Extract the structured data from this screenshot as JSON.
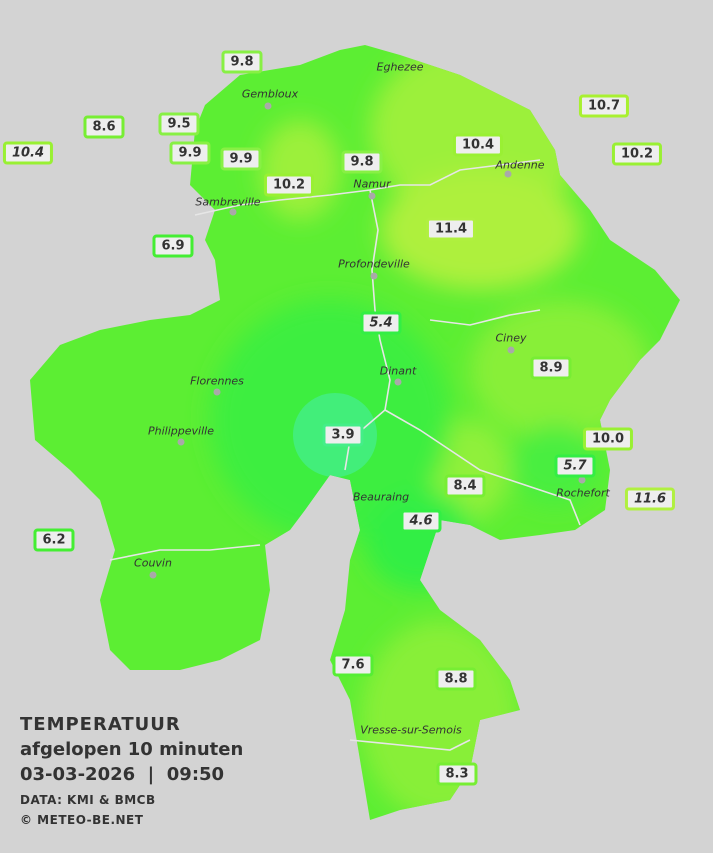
{
  "legend": {
    "title": "TEMPERATUUR",
    "subtitle": "afgelopen 10 minuten",
    "datetime": "03-03-2026  |  09:50",
    "source": "DATA: KMI & BMCB",
    "copyright": "© METEO-BE.NET"
  },
  "colors": {
    "background": "#d3d3d3",
    "map_base": "#66ee33",
    "warm": "#aef03e",
    "cool": "#33ee55",
    "coldest": "#44ee88",
    "river": "#e6e6e6"
  },
  "towns": [
    "Gembloux",
    "Eghezee",
    "Andenne",
    "Sambreville",
    "Namur",
    "Profondeville",
    "Ciney",
    "Dinant",
    "Florennes",
    "Philippeville",
    "Beauraing",
    "Rochefort",
    "Couvin",
    "Vresse-sur-Semois"
  ],
  "stations": [
    {
      "value": "9.8",
      "border": "#88f044"
    },
    {
      "value": "8.6",
      "border": "#77ee33"
    },
    {
      "value": "9.5",
      "border": "#88f044"
    },
    {
      "value": "10.4",
      "border": "#99f033",
      "italic": true
    },
    {
      "value": "9.9",
      "border": "#88f044"
    },
    {
      "value": "9.9",
      "border": "#88f044"
    },
    {
      "value": "10.2",
      "border": "#99f033"
    },
    {
      "value": "9.8",
      "border": "#88f044"
    },
    {
      "value": "10.4",
      "border": "#99f033"
    },
    {
      "value": "10.7",
      "border": "#a8f030"
    },
    {
      "value": "10.2",
      "border": "#99f033"
    },
    {
      "value": "11.4",
      "border": "#b0f040"
    },
    {
      "value": "6.9",
      "border": "#44ee33"
    },
    {
      "value": "5.4",
      "border": "#33ee44",
      "italic": true
    },
    {
      "value": "8.9",
      "border": "#77ee33"
    },
    {
      "value": "3.9",
      "border": "#44ee88"
    },
    {
      "value": "10.0",
      "border": "#99f033"
    },
    {
      "value": "5.7",
      "border": "#33ee44",
      "italic": true
    },
    {
      "value": "8.4",
      "border": "#77ee33"
    },
    {
      "value": "11.6",
      "border": "#b0f040",
      "italic": true
    },
    {
      "value": "4.6",
      "border": "#33ee44",
      "italic": true
    },
    {
      "value": "6.2",
      "border": "#44ee33"
    },
    {
      "value": "7.6",
      "border": "#55ee33"
    },
    {
      "value": "8.8",
      "border": "#77ee33"
    },
    {
      "value": "8.3",
      "border": "#77ee33"
    }
  ]
}
